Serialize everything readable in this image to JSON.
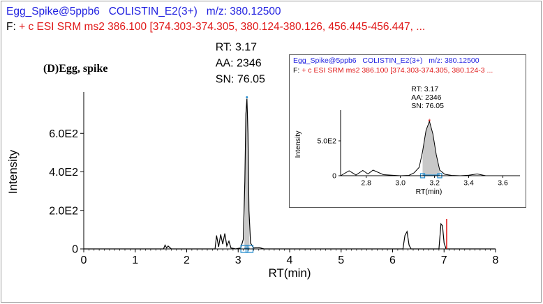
{
  "header": {
    "title_line": "Egg_Spike@5ppb6   COLISTIN_E2(3+)   m/z: 380.12500",
    "filter_label": "F:",
    "filter_text": " + c ESI SRM ms2 386.100 [374.303-374.305, 380.124-380.126, 456.445-456.447, ..."
  },
  "panel_label": "(D)Egg, spike",
  "inset": {
    "title_line": "Egg_Spike@5ppb6   COLISTIN_E2(3+)   m/z: 380.12500",
    "filter_label": "F:",
    "filter_text": " + c ESI SRM ms2 386.100 [374.303-374.305, 380.124-3 ...",
    "ylabel": "Intensity",
    "xlabel": "RT(min)"
  },
  "colors": {
    "title_blue": "#1f1fe0",
    "filter_red": "#e01818",
    "peak_fill": "#c8c8c8",
    "baseline_marker": "#2a8fd0",
    "cursor_red": "#e01818"
  },
  "chart_data": [
    {
      "type": "line",
      "xlabel": "RT(min)",
      "ylabel": "Intensity",
      "xlim": [
        0,
        8
      ],
      "ylim": [
        0,
        800
      ],
      "xticks": [
        0,
        1,
        2,
        3,
        4,
        5,
        6,
        7,
        8
      ],
      "yticks": [
        0,
        200,
        400,
        600
      ],
      "ytick_labels": [
        "0",
        "2.0E2",
        "4.0E2",
        "6.0E2"
      ],
      "grid": false,
      "annotation": [
        "RT: 3.17",
        "AA: 2346",
        "SN: 76.05"
      ],
      "peak": {
        "rt": 3.17,
        "height": 780,
        "start": 3.12,
        "end": 3.22
      },
      "series": [
        {
          "x": [
            0.0,
            1.55,
            1.58,
            1.61,
            1.64,
            1.7,
            2.55,
            2.58,
            2.62,
            2.66,
            2.7,
            2.74,
            2.78,
            2.82,
            2.86,
            2.95,
            3.05,
            3.1,
            3.13,
            3.15,
            3.17,
            3.19,
            3.21,
            3.24,
            3.3,
            3.4,
            3.5,
            6.2,
            6.24,
            6.28,
            6.32,
            6.36,
            6.9,
            6.94,
            6.97,
            7.0,
            7.04,
            8.0
          ],
          "y": [
            0,
            0,
            20,
            5,
            15,
            0,
            0,
            70,
            10,
            75,
            25,
            80,
            15,
            40,
            5,
            0,
            5,
            50,
            350,
            700,
            780,
            600,
            200,
            30,
            5,
            8,
            0,
            0,
            70,
            90,
            20,
            0,
            0,
            130,
            120,
            30,
            0,
            0
          ]
        }
      ]
    },
    {
      "type": "line",
      "xlabel": "RT(min)",
      "ylabel": "Intensity",
      "xlim": [
        2.65,
        3.7
      ],
      "ylim": [
        0,
        900
      ],
      "xticks": [
        2.8,
        3.0,
        3.2,
        3.4,
        3.6
      ],
      "yticks": [
        0,
        500
      ],
      "ytick_labels": [
        "0",
        "5.0E2"
      ],
      "grid": false,
      "annotation": [
        "RT: 3.17",
        "AA: 2346",
        "SN: 76.05"
      ],
      "peak": {
        "rt": 3.17,
        "height": 780,
        "start": 3.13,
        "end": 3.23
      },
      "series": [
        {
          "x": [
            2.65,
            2.7,
            2.74,
            2.78,
            2.81,
            2.84,
            2.9,
            3.0,
            3.05,
            3.08,
            3.11,
            3.13,
            3.15,
            3.17,
            3.19,
            3.21,
            3.23,
            3.26,
            3.3,
            3.35,
            3.4,
            3.45,
            3.5,
            3.7
          ],
          "y": [
            0,
            70,
            10,
            75,
            25,
            80,
            15,
            0,
            5,
            40,
            120,
            350,
            650,
            780,
            600,
            300,
            80,
            20,
            5,
            0,
            8,
            25,
            0,
            0
          ]
        }
      ]
    }
  ]
}
